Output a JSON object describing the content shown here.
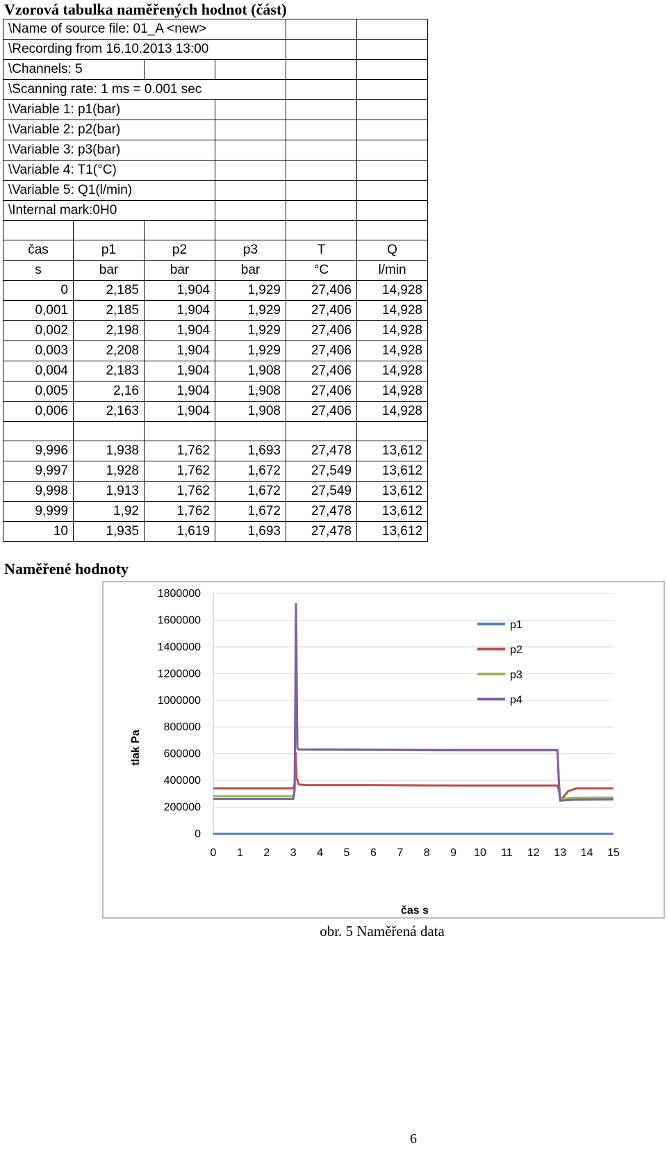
{
  "document": {
    "title": "Vzorová tabulka naměřených hodnot (část)",
    "section2_title": "Naměřené hodnoty",
    "caption": "obr. 5 Naměřená data",
    "page_number": "6"
  },
  "header_rows": [
    "\\Name of source file: 01_A <new>",
    "\\Recording from 16.10.2013  13:00",
    "\\Channels: 5",
    "\\Scanning rate:   1 ms =  0.001 sec",
    "\\Variable  1: p1(bar)",
    "\\Variable  2: p2(bar)",
    "\\Variable  3: p3(bar)",
    "\\Variable  4: T1(°C)",
    "\\Variable  5: Q1(l/min)",
    "\\Internal mark:0H0"
  ],
  "table": {
    "columns": [
      "čas",
      "p1",
      "p2",
      "p3",
      "T",
      "Q"
    ],
    "units": [
      "s",
      "bar",
      "bar",
      "bar",
      "°C",
      "l/min"
    ],
    "rows_start": [
      [
        "0",
        "2,185",
        "1,904",
        "1,929",
        "27,406",
        "14,928"
      ],
      [
        "0,001",
        "2,185",
        "1,904",
        "1,929",
        "27,406",
        "14,928"
      ],
      [
        "0,002",
        "2,198",
        "1,904",
        "1,929",
        "27,406",
        "14,928"
      ],
      [
        "0,003",
        "2,208",
        "1,904",
        "1,929",
        "27,406",
        "14,928"
      ],
      [
        "0,004",
        "2,183",
        "1,904",
        "1,908",
        "27,406",
        "14,928"
      ],
      [
        "0,005",
        "2,16",
        "1,904",
        "1,908",
        "27,406",
        "14,928"
      ],
      [
        "0,006",
        "2,163",
        "1,904",
        "1,908",
        "27,406",
        "14,928"
      ]
    ],
    "rows_end": [
      [
        "9,996",
        "1,938",
        "1,762",
        "1,693",
        "27,478",
        "13,612"
      ],
      [
        "9,997",
        "1,928",
        "1,762",
        "1,672",
        "27,549",
        "13,612"
      ],
      [
        "9,998",
        "1,913",
        "1,762",
        "1,672",
        "27,549",
        "13,612"
      ],
      [
        "9,999",
        "1,92",
        "1,762",
        "1,672",
        "27,478",
        "13,612"
      ],
      [
        "10",
        "1,935",
        "1,619",
        "1,693",
        "27,478",
        "13,612"
      ]
    ]
  },
  "chart_data": {
    "type": "line",
    "title": "",
    "xlabel": "čas s",
    "ylabel": "tlak Pa",
    "xlim": [
      0,
      15
    ],
    "ylim": [
      0,
      1800000
    ],
    "x_ticks": [
      "0",
      "1",
      "2",
      "3",
      "4",
      "5",
      "6",
      "7",
      "8",
      "9",
      "10",
      "11",
      "12",
      "13",
      "14",
      "15"
    ],
    "y_ticks": [
      "0",
      "200000",
      "400000",
      "600000",
      "800000",
      "1000000",
      "1200000",
      "1400000",
      "1600000",
      "1800000"
    ],
    "grid": "horizontal",
    "legend": "right",
    "series": [
      {
        "name": "p1",
        "color": "#4a7ebb",
        "x": [
          0,
          15
        ],
        "y": [
          0,
          0
        ]
      },
      {
        "name": "p2",
        "color": "#be4b48",
        "x": [
          0,
          3.0,
          3.05,
          3.08,
          3.12,
          3.2,
          3.5,
          6,
          9,
          12.9,
          12.95,
          13.0,
          13.1,
          13.3,
          13.6,
          15
        ],
        "y": [
          340000,
          340000,
          380000,
          610000,
          420000,
          370000,
          365000,
          365000,
          362000,
          362000,
          330000,
          260000,
          270000,
          320000,
          340000,
          340000
        ]
      },
      {
        "name": "p3",
        "color": "#98b954",
        "x": [
          0,
          3.0,
          3.05,
          3.1,
          3.15,
          3.2,
          6,
          9,
          12.9,
          12.95,
          13.0,
          13.2,
          13.5,
          15
        ],
        "y": [
          282000,
          282000,
          330000,
          1720000,
          640000,
          630000,
          628000,
          625000,
          625000,
          400000,
          262000,
          265000,
          270000,
          272000
        ]
      },
      {
        "name": "p4",
        "color": "#7d60a0",
        "x": [
          0,
          3.0,
          3.05,
          3.1,
          3.15,
          3.2,
          6,
          9,
          12.9,
          12.95,
          13.0,
          13.2,
          13.5,
          15
        ],
        "y": [
          262000,
          262000,
          330000,
          1720000,
          640000,
          632000,
          630000,
          628000,
          628000,
          400000,
          248000,
          252000,
          255000,
          258000
        ]
      }
    ]
  }
}
